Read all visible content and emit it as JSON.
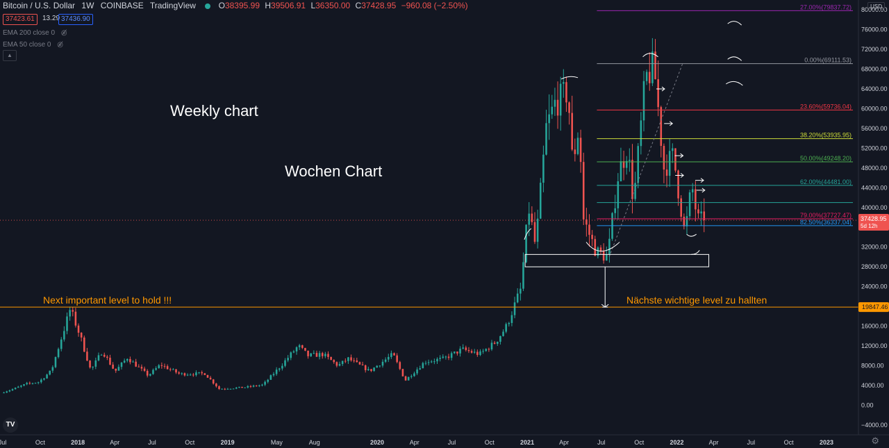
{
  "header": {
    "symbol": "Bitcoin / U.S. Dollar",
    "interval": "1W",
    "exchange": "COINBASE",
    "source": "TradingView",
    "open_label": "O",
    "open": "38395.99",
    "high_label": "H",
    "high": "39506.91",
    "low_label": "L",
    "low": "36350.00",
    "close_label": "C",
    "close": "37428.95",
    "change": "−960.08 (−2.50%)",
    "bid": "37423.61",
    "spread": "13.29",
    "ask": "37436.90"
  },
  "indicators": [
    {
      "label": "EMA 200 close 0",
      "icon": "eye-off-icon"
    },
    {
      "label": "EMA 50 close 0",
      "icon": "eye-off-icon"
    }
  ],
  "currency_label": "USD",
  "annotations": {
    "weekly": "Weekly chart",
    "wochen": "Wochen Chart",
    "next_level": "Next important level to hold !!!",
    "naechste_level": "Nächste wichtige level zu hallten"
  },
  "colors": {
    "up": "#26a69a",
    "down": "#ef5350",
    "background": "#131722",
    "level_line": "#ff9800"
  },
  "chart_data": {
    "type": "candlestick",
    "ylim": [
      -6000,
      82000
    ],
    "yticks": [
      -4000,
      0,
      4000,
      8000,
      12000,
      16000,
      20000,
      24000,
      28000,
      32000,
      36000,
      40000,
      44000,
      48000,
      52000,
      56000,
      60000,
      64000,
      68000,
      72000,
      76000,
      80000
    ],
    "ytick_labels": [
      "−4000.00",
      "0.00",
      "4000.00",
      "8000.00",
      "12000.00",
      "16000.00",
      "20000.00",
      "24000.00",
      "28000.00",
      "32000.00",
      "36000.00",
      "40000.00",
      "44000.00",
      "48000.00",
      "52000.00",
      "56000.00",
      "60000.00",
      "64000.00",
      "68000.00",
      "72000.00",
      "76000.00",
      "80000.00"
    ],
    "xlim": [
      "2017-06-25",
      "2023-03-20"
    ],
    "xticks": [
      {
        "date": "2017-07-01",
        "label": "Jul"
      },
      {
        "date": "2017-10-01",
        "label": "Oct"
      },
      {
        "date": "2018-01-01",
        "label": "2018"
      },
      {
        "date": "2018-04-01",
        "label": "Apr"
      },
      {
        "date": "2018-07-01",
        "label": "Jul"
      },
      {
        "date": "2018-10-01",
        "label": "Oct"
      },
      {
        "date": "2019-01-01",
        "label": "2019"
      },
      {
        "date": "2019-05-01",
        "label": "May"
      },
      {
        "date": "2019-08-01",
        "label": "Aug"
      },
      {
        "date": "2020-01-01",
        "label": "2020"
      },
      {
        "date": "2020-04-01",
        "label": "Apr"
      },
      {
        "date": "2020-07-01",
        "label": "Jul"
      },
      {
        "date": "2020-10-01",
        "label": "Oct"
      },
      {
        "date": "2021-01-01",
        "label": "2021"
      },
      {
        "date": "2021-04-01",
        "label": "Apr"
      },
      {
        "date": "2021-07-01",
        "label": "Jul"
      },
      {
        "date": "2021-10-01",
        "label": "Oct"
      },
      {
        "date": "2022-01-01",
        "label": "2022"
      },
      {
        "date": "2022-04-01",
        "label": "Apr"
      },
      {
        "date": "2022-07-01",
        "label": "Jul"
      },
      {
        "date": "2022-10-01",
        "label": "Oct"
      },
      {
        "date": "2023-01-01",
        "label": "2023"
      }
    ],
    "price_path": [
      [
        "2017-07-01",
        2500
      ],
      [
        "2017-08-01",
        3300
      ],
      [
        "2017-09-01",
        4300
      ],
      [
        "2017-10-01",
        4700
      ],
      [
        "2017-11-01",
        7000
      ],
      [
        "2017-12-17",
        19500
      ],
      [
        "2018-01-10",
        14000
      ],
      [
        "2018-02-05",
        7000
      ],
      [
        "2018-03-05",
        11000
      ],
      [
        "2018-04-05",
        6800
      ],
      [
        "2018-05-05",
        9600
      ],
      [
        "2018-06-25",
        6000
      ],
      [
        "2018-07-25",
        8200
      ],
      [
        "2018-09-10",
        6300
      ],
      [
        "2018-11-10",
        6400
      ],
      [
        "2018-12-15",
        3300
      ],
      [
        "2019-02-15",
        3600
      ],
      [
        "2019-04-01",
        4100
      ],
      [
        "2019-05-15",
        8000
      ],
      [
        "2019-06-26",
        12000
      ],
      [
        "2019-07-20",
        10000
      ],
      [
        "2019-08-25",
        10300
      ],
      [
        "2019-10-01",
        8000
      ],
      [
        "2019-10-26",
        9400
      ],
      [
        "2019-12-17",
        6900
      ],
      [
        "2020-02-12",
        10300
      ],
      [
        "2020-03-13",
        5000
      ],
      [
        "2020-04-30",
        8800
      ],
      [
        "2020-06-15",
        9400
      ],
      [
        "2020-07-30",
        11300
      ],
      [
        "2020-09-10",
        10300
      ],
      [
        "2020-10-20",
        12800
      ],
      [
        "2020-11-15",
        16000
      ],
      [
        "2020-12-20",
        23500
      ],
      [
        "2021-01-08",
        40000
      ],
      [
        "2021-01-25",
        32000
      ],
      [
        "2021-02-20",
        56000
      ],
      [
        "2021-03-13",
        61000
      ],
      [
        "2021-04-14",
        63500
      ],
      [
        "2021-04-25",
        49000
      ],
      [
        "2021-05-12",
        57000
      ],
      [
        "2021-05-20",
        38000
      ],
      [
        "2021-06-22",
        31000
      ],
      [
        "2021-07-20",
        30000
      ],
      [
        "2021-08-15",
        47000
      ],
      [
        "2021-09-06",
        52000
      ],
      [
        "2021-09-21",
        41000
      ],
      [
        "2021-10-20",
        66000
      ],
      [
        "2021-11-10",
        68700
      ],
      [
        "2021-12-04",
        48000
      ],
      [
        "2021-12-27",
        50500
      ],
      [
        "2022-01-24",
        34500
      ],
      [
        "2022-02-10",
        44500
      ],
      [
        "2022-02-24",
        37500
      ],
      [
        "2022-03-05",
        37428.95
      ]
    ],
    "fib_levels": [
      {
        "label": "27.00%(79837.72)",
        "value": 79837.72,
        "color": "#9c27b0"
      },
      {
        "label": "0.00%(69111.53)",
        "value": 69111.53,
        "color": "#9598a1"
      },
      {
        "label": "23.60%(59736.04)",
        "value": 59736.04,
        "color": "#f23645"
      },
      {
        "label": "38.20%(53935.95)",
        "value": 53935.95,
        "color": "#cddc39"
      },
      {
        "label": "50.00%(49248.20)",
        "value": 49248.2,
        "color": "#4caf50"
      },
      {
        "label": "62.00%(44481.00)",
        "value": 44481.0,
        "color": "#26a69a"
      },
      {
        "label": "",
        "value": 41000,
        "color": "#26a69a"
      },
      {
        "label": "79.00%(37727.47)",
        "value": 37727.47,
        "color": "#e91e63"
      },
      {
        "label": "82.50%(36337.04)",
        "value": 36337.04,
        "color": "#2196f3"
      }
    ],
    "fib_start": "2021-06-20",
    "last_price": {
      "value": 37428.95,
      "label": "37428.95",
      "countdown": "5d 12h"
    },
    "support_level": {
      "value": 19847.46,
      "label": "19847.46"
    },
    "support_box": {
      "from": "2020-12-27",
      "to": "2022-03-20",
      "low": 28000,
      "high": 30500
    }
  }
}
